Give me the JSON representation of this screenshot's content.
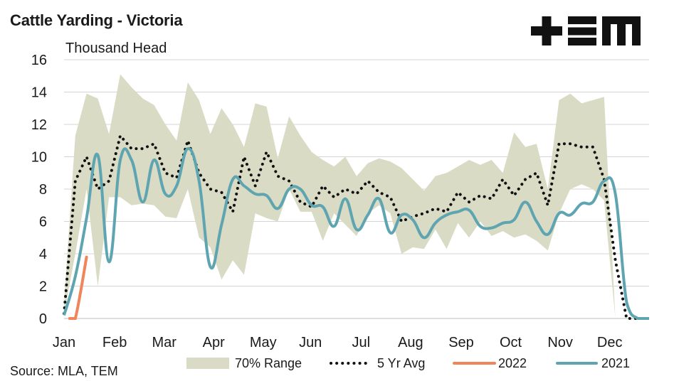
{
  "title": "Cattle Yarding - Victoria",
  "logo_text": "TEM",
  "source": "Source: MLA, TEM",
  "colors": {
    "range_fill": "#d9dbc5",
    "avg": "#111111",
    "y2022": "#f0845a",
    "y2021": "#5fa5b1",
    "grid": "#d4d4d4"
  },
  "chart_data": {
    "type": "line",
    "title": "Cattle Yarding - Victoria",
    "ylabel": "Thousand Head",
    "ylim": [
      0,
      16
    ],
    "xlim": [
      1,
      53
    ],
    "yticks": [
      0,
      2,
      4,
      6,
      8,
      10,
      12,
      14,
      16
    ],
    "x_axis": "week of year",
    "month_labels": [
      {
        "label": "Jan",
        "week": 1
      },
      {
        "label": "Feb",
        "week": 5.5
      },
      {
        "label": "Mar",
        "week": 9.9
      },
      {
        "label": "Apr",
        "week": 14.3
      },
      {
        "label": "May",
        "week": 18.7
      },
      {
        "label": "Jun",
        "week": 22.9
      },
      {
        "label": "Jul",
        "week": 27.4
      },
      {
        "label": "Aug",
        "week": 31.8
      },
      {
        "label": "Sep",
        "week": 36.3
      },
      {
        "label": "Oct",
        "week": 40.7
      },
      {
        "label": "Nov",
        "week": 45.1
      },
      {
        "label": "Dec",
        "week": 49.5
      }
    ],
    "grid": true,
    "legend_position": "bottom",
    "series": [
      {
        "name": "70% Range",
        "style": "band",
        "x": [
          1,
          2,
          3,
          4,
          5,
          6,
          7,
          8,
          9,
          10,
          11,
          12,
          13,
          14,
          15,
          16,
          17,
          18,
          19,
          20,
          21,
          22,
          23,
          24,
          25,
          26,
          27,
          28,
          29,
          30,
          31,
          32,
          33,
          34,
          35,
          36,
          37,
          38,
          39,
          40,
          41,
          42,
          43,
          44,
          45,
          46,
          47,
          48,
          49,
          50,
          51,
          52,
          53
        ],
        "lower": [
          0.3,
          4.0,
          8.0,
          2.0,
          7.5,
          7.5,
          7.0,
          7.1,
          7.0,
          6.3,
          6.2,
          8.0,
          5.0,
          4.4,
          2.4,
          3.6,
          2.7,
          6.5,
          6.2,
          6.0,
          8.0,
          6.6,
          6.6,
          4.8,
          6.5,
          5.8,
          5.1,
          6.5,
          7.0,
          6.5,
          4.0,
          4.4,
          4.3,
          5.5,
          4.3,
          5.9,
          5.0,
          6.0,
          5.1,
          5.4,
          5.0,
          5.2,
          4.8,
          4.2,
          6.5,
          8.0,
          8.3,
          8.0,
          7.3,
          0.0,
          0.0,
          0.0,
          0.0
        ],
        "upper": [
          1.0,
          11.3,
          13.9,
          13.6,
          11.4,
          15.1,
          14.3,
          13.6,
          13.2,
          12.0,
          11.0,
          14.6,
          13.5,
          11.4,
          13.0,
          12.0,
          10.6,
          13.3,
          13.1,
          9.9,
          12.5,
          11.3,
          10.3,
          9.8,
          9.4,
          10.0,
          8.8,
          9.6,
          9.9,
          9.7,
          9.3,
          8.6,
          7.9,
          8.8,
          9.0,
          9.4,
          9.8,
          9.5,
          9.8,
          9.0,
          11.5,
          10.6,
          10.8,
          8.0,
          13.5,
          13.9,
          13.3,
          13.5,
          13.7,
          0.0,
          0.0,
          0.0,
          0.0
        ]
      },
      {
        "name": "5 Yr Avg",
        "style": "dotted",
        "x": [
          1,
          2,
          3,
          4,
          5,
          6,
          7,
          8,
          9,
          10,
          11,
          12,
          13,
          14,
          15,
          16,
          17,
          18,
          19,
          20,
          21,
          22,
          23,
          24,
          25,
          26,
          27,
          28,
          29,
          30,
          31,
          32,
          33,
          34,
          35,
          36,
          37,
          38,
          39,
          40,
          41,
          42,
          43,
          44,
          45,
          46,
          47,
          48,
          49,
          50,
          51,
          52,
          53
        ],
        "values": [
          0.3,
          8.5,
          10.0,
          8.0,
          8.5,
          11.3,
          10.5,
          10.5,
          10.8,
          9.0,
          8.7,
          11.0,
          9.0,
          8.0,
          7.8,
          6.6,
          10.0,
          8.2,
          10.3,
          8.8,
          8.5,
          7.2,
          6.9,
          8.2,
          7.5,
          8.0,
          7.7,
          8.5,
          7.8,
          7.5,
          6.0,
          6.3,
          6.5,
          6.8,
          6.6,
          7.8,
          7.2,
          7.6,
          7.4,
          8.6,
          7.6,
          8.6,
          9.0,
          7.0,
          10.8,
          10.8,
          10.6,
          10.6,
          8.6,
          3.6,
          0.0,
          0.0,
          0.0
        ]
      },
      {
        "name": "2022",
        "style": "line",
        "x": [
          1.5,
          2,
          3
        ],
        "values": [
          0.0,
          0.0,
          3.8
        ]
      },
      {
        "name": "2021",
        "style": "line",
        "x": [
          1,
          2,
          3,
          4,
          5,
          6,
          7,
          8,
          9,
          10,
          11,
          12,
          13,
          14,
          15,
          16,
          17,
          18,
          19,
          20,
          21,
          22,
          23,
          24,
          25,
          26,
          27,
          28,
          29,
          30,
          31,
          32,
          33,
          34,
          35,
          36,
          37,
          38,
          39,
          40,
          41,
          42,
          43,
          44,
          45,
          46,
          47,
          48,
          49,
          50,
          51,
          52,
          53
        ],
        "values": [
          0.2,
          2.6,
          6.2,
          10.1,
          3.5,
          9.8,
          9.8,
          7.2,
          9.8,
          7.7,
          8.2,
          10.5,
          8.5,
          3.2,
          5.8,
          8.6,
          8.2,
          7.7,
          7.6,
          6.8,
          8.0,
          8.0,
          7.0,
          6.9,
          5.7,
          7.4,
          5.5,
          6.4,
          7.4,
          5.3,
          6.4,
          6.1,
          5.0,
          5.9,
          6.4,
          6.6,
          6.7,
          5.7,
          5.6,
          5.9,
          6.1,
          7.2,
          6.0,
          5.2,
          6.5,
          6.4,
          7.1,
          7.2,
          8.5,
          7.7,
          1.0,
          0.0,
          0.0
        ]
      }
    ]
  }
}
